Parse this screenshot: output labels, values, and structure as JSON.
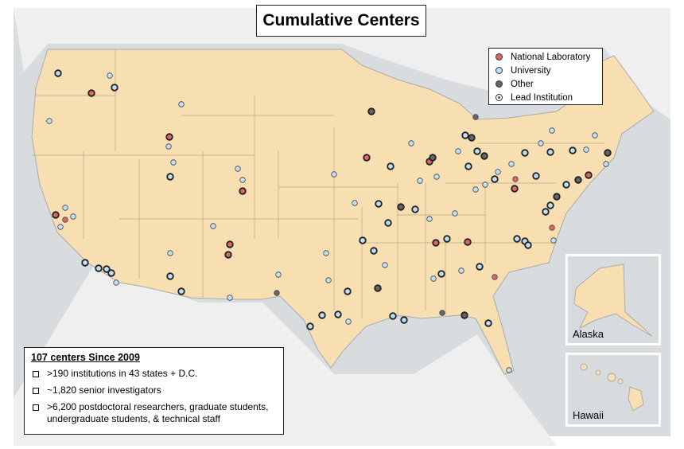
{
  "title": "Cumulative Centers",
  "legend": [
    "National Laboratory",
    "University",
    "Other",
    "Lead Institution"
  ],
  "insets": [
    "Alaska",
    "Hawaii"
  ],
  "info": {
    "heading": "107 centers Since 2009",
    "items": [
      ">190 institutions in 43 states + D.C.",
      "~1,820 senior investigators",
      ">6,200 postdoctoral researchers, graduate students, undergraduate students, & technical staff"
    ]
  }
}
